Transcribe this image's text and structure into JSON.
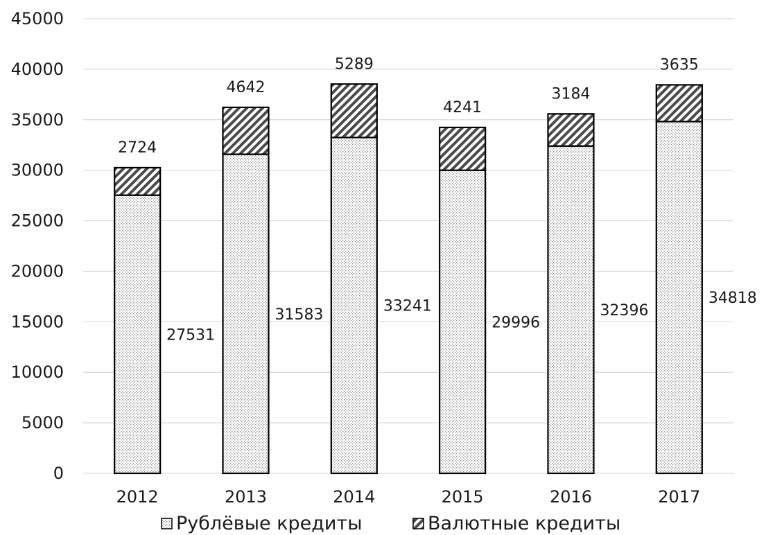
{
  "chart_data": {
    "type": "bar",
    "stacked": true,
    "categories": [
      "2012",
      "2013",
      "2014",
      "2015",
      "2016",
      "2017"
    ],
    "series": [
      {
        "name": "Рублёвые кредиты",
        "values": [
          27531,
          31583,
          33241,
          29996,
          32396,
          34818
        ],
        "pattern": "dots"
      },
      {
        "name": "Валютные кредиты",
        "values": [
          2724,
          4642,
          5289,
          4241,
          3184,
          3635
        ],
        "pattern": "diagonal-hatch"
      }
    ],
    "data_labels": {
      "bottom": [
        "27531",
        "31583",
        "33241",
        "29996",
        "32396",
        "34818"
      ],
      "top": [
        "2724",
        "4642",
        "5289",
        "4241",
        "3184",
        "3635"
      ]
    },
    "y_ticks": [
      "0",
      "5000",
      "10000",
      "15000",
      "20000",
      "25000",
      "30000",
      "35000",
      "40000",
      "45000"
    ],
    "ylim": [
      0,
      45000
    ],
    "grid": true,
    "legend_position": "bottom",
    "colors": {
      "grid": "#d9d9d9",
      "bar_outline": "#000000",
      "text": "#1a1a1a"
    }
  }
}
